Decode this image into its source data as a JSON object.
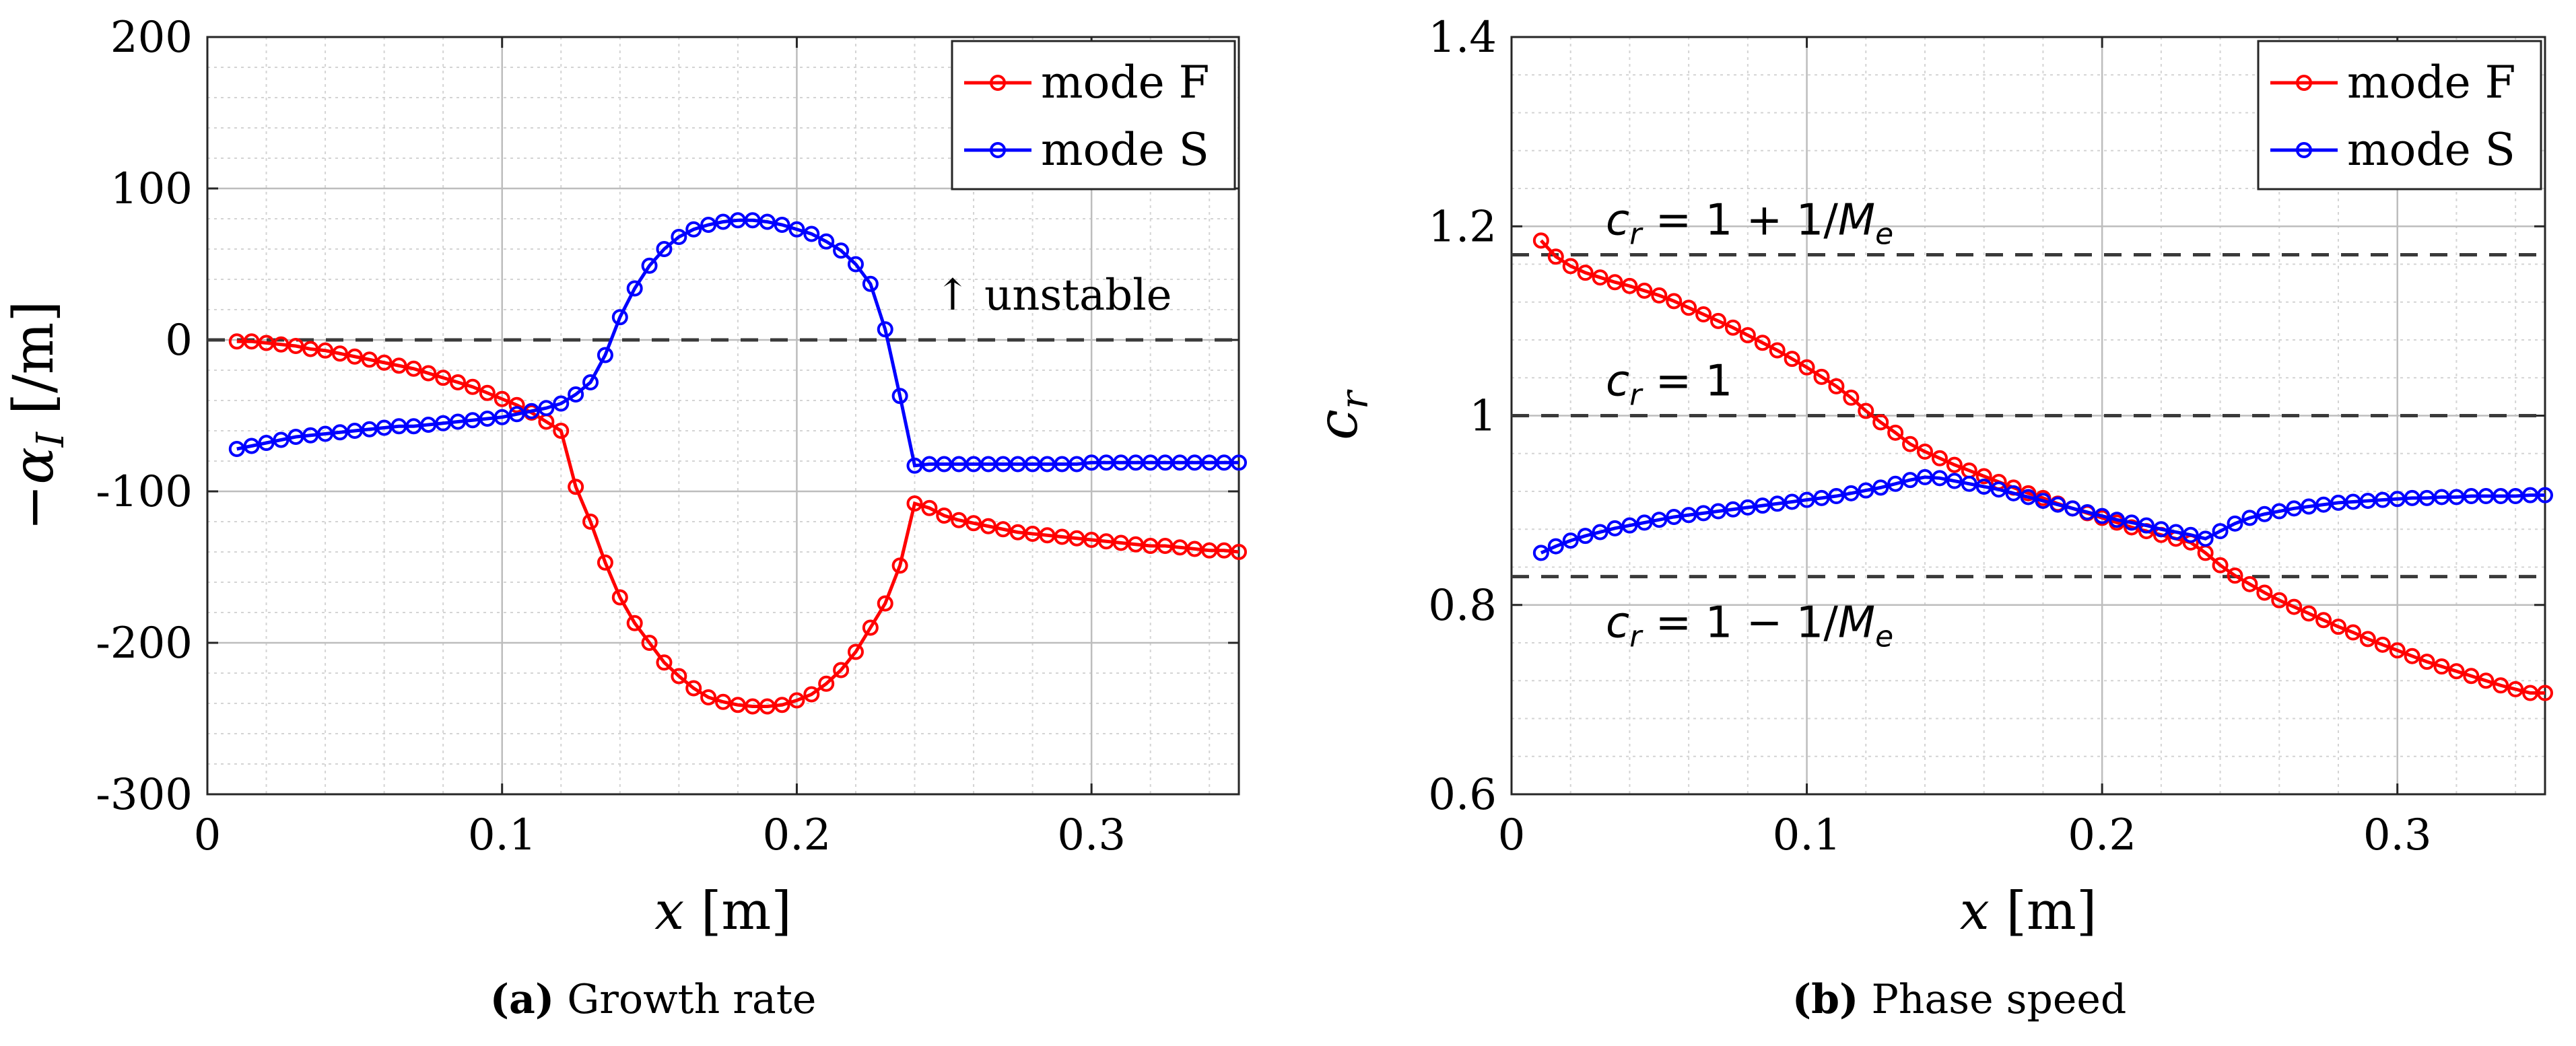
{
  "chart_data": [
    {
      "type": "line",
      "xlabel": "x [m]",
      "ylabel": "−α_I [/m]",
      "xlim": [
        0,
        0.35
      ],
      "ylim": [
        -300,
        200
      ],
      "xticks": [
        0,
        0.1,
        0.2,
        0.3
      ],
      "yticks": [
        -300,
        -200,
        -100,
        0,
        100,
        200
      ],
      "xtick_labels": [
        "0",
        "0.1",
        "0.2",
        "0.3"
      ],
      "ytick_labels": [
        "-300",
        "-200",
        "-100",
        "0",
        "100",
        "200"
      ],
      "grid": "major and minor",
      "legend": "top-right",
      "reference_lines": [
        {
          "y": 0,
          "style": "dashed"
        }
      ],
      "annotations": [
        {
          "text": "↑ unstable",
          "x": 0.287,
          "y": 20
        }
      ],
      "series": [
        {
          "name": "mode F",
          "color": "#ff0000",
          "x": [
            0.01,
            0.015,
            0.02,
            0.025,
            0.03,
            0.035,
            0.04,
            0.045,
            0.05,
            0.055,
            0.06,
            0.065,
            0.07,
            0.075,
            0.08,
            0.085,
            0.09,
            0.095,
            0.1,
            0.105,
            0.11,
            0.115,
            0.12,
            0.125,
            0.13,
            0.135,
            0.14,
            0.145,
            0.15,
            0.155,
            0.16,
            0.165,
            0.17,
            0.175,
            0.18,
            0.185,
            0.19,
            0.195,
            0.2,
            0.205,
            0.21,
            0.215,
            0.22,
            0.225,
            0.23,
            0.235,
            0.24,
            0.245,
            0.25,
            0.255,
            0.26,
            0.265,
            0.27,
            0.275,
            0.28,
            0.285,
            0.29,
            0.295,
            0.3,
            0.305,
            0.31,
            0.315,
            0.32,
            0.325,
            0.33,
            0.335,
            0.34,
            0.345,
            0.35
          ],
          "y": [
            -1,
            -1,
            -2,
            -3,
            -4,
            -6,
            -7,
            -9,
            -11,
            -13,
            -15,
            -17,
            -19,
            -22,
            -25,
            -28,
            -31,
            -35,
            -39,
            -43,
            -48,
            -54,
            -60,
            -97,
            -120,
            -147,
            -170,
            -187,
            -200,
            -213,
            -222,
            -230,
            -236,
            -239,
            -241,
            -242,
            -242,
            -241,
            -238,
            -234,
            -227,
            -218,
            -206,
            -190,
            -174,
            -149,
            -108,
            -111,
            -116,
            -119,
            -121,
            -123,
            -125,
            -127,
            -128,
            -129,
            -130,
            -131,
            -132,
            -133,
            -134,
            -135,
            -136,
            -136,
            -137,
            -138,
            -139,
            -139,
            -140
          ]
        },
        {
          "name": "mode S",
          "color": "#0000ff",
          "x": [
            0.01,
            0.015,
            0.02,
            0.025,
            0.03,
            0.035,
            0.04,
            0.045,
            0.05,
            0.055,
            0.06,
            0.065,
            0.07,
            0.075,
            0.08,
            0.085,
            0.09,
            0.095,
            0.1,
            0.105,
            0.11,
            0.115,
            0.12,
            0.125,
            0.13,
            0.135,
            0.14,
            0.145,
            0.15,
            0.155,
            0.16,
            0.165,
            0.17,
            0.175,
            0.18,
            0.185,
            0.19,
            0.195,
            0.2,
            0.205,
            0.21,
            0.215,
            0.22,
            0.225,
            0.23,
            0.235,
            0.24,
            0.245,
            0.25,
            0.255,
            0.26,
            0.265,
            0.27,
            0.275,
            0.28,
            0.285,
            0.29,
            0.295,
            0.3,
            0.305,
            0.31,
            0.315,
            0.32,
            0.325,
            0.33,
            0.335,
            0.34,
            0.345,
            0.35
          ],
          "y": [
            -72,
            -70,
            -68,
            -66,
            -64,
            -63,
            -62,
            -61,
            -60,
            -59,
            -58,
            -57,
            -57,
            -56,
            -55,
            -54,
            -53,
            -52,
            -51,
            -49,
            -47,
            -45,
            -42,
            -36,
            -28,
            -10,
            15,
            34,
            49,
            60,
            68,
            73,
            76,
            78,
            79,
            79,
            78,
            76,
            73,
            70,
            65,
            59,
            50,
            37,
            7,
            -37,
            -83,
            -82,
            -82,
            -82,
            -82,
            -82,
            -82,
            -82,
            -82,
            -82,
            -82,
            -82,
            -81,
            -81,
            -81,
            -81,
            -81,
            -81,
            -81,
            -81,
            -81,
            -81,
            -81
          ]
        }
      ]
    },
    {
      "type": "line",
      "xlabel": "x [m]",
      "ylabel": "c_r",
      "xlim": [
        0,
        0.35
      ],
      "ylim": [
        0.6,
        1.4
      ],
      "xticks": [
        0,
        0.1,
        0.2,
        0.3
      ],
      "yticks": [
        0.6,
        0.8,
        1.0,
        1.2,
        1.4
      ],
      "xtick_labels": [
        "0",
        "0.1",
        "0.2",
        "0.3"
      ],
      "ytick_labels": [
        "0.6",
        "0.8",
        "1",
        "1.2",
        "1.4"
      ],
      "grid": "major and minor",
      "legend": "top-right",
      "reference_lines": [
        {
          "y": 1.17,
          "style": "dashed",
          "label": "c_r = 1 + 1/M_e"
        },
        {
          "y": 1.0,
          "style": "dashed",
          "label": "c_r = 1"
        },
        {
          "y": 0.83,
          "style": "dashed",
          "label": "c_r = 1 − 1/M_e"
        }
      ],
      "series": [
        {
          "name": "mode F",
          "color": "#ff0000",
          "x": [
            0.01,
            0.015,
            0.02,
            0.025,
            0.03,
            0.035,
            0.04,
            0.045,
            0.05,
            0.055,
            0.06,
            0.065,
            0.07,
            0.075,
            0.08,
            0.085,
            0.09,
            0.095,
            0.1,
            0.105,
            0.11,
            0.115,
            0.12,
            0.125,
            0.13,
            0.135,
            0.14,
            0.145,
            0.15,
            0.155,
            0.16,
            0.165,
            0.17,
            0.175,
            0.18,
            0.185,
            0.19,
            0.195,
            0.2,
            0.205,
            0.21,
            0.215,
            0.22,
            0.225,
            0.23,
            0.235,
            0.24,
            0.245,
            0.25,
            0.255,
            0.26,
            0.265,
            0.27,
            0.275,
            0.28,
            0.285,
            0.29,
            0.295,
            0.3,
            0.305,
            0.31,
            0.315,
            0.32,
            0.325,
            0.33,
            0.335,
            0.34,
            0.345,
            0.35
          ],
          "y": [
            1.185,
            1.168,
            1.158,
            1.151,
            1.146,
            1.141,
            1.137,
            1.132,
            1.127,
            1.121,
            1.114,
            1.107,
            1.1,
            1.093,
            1.085,
            1.077,
            1.069,
            1.06,
            1.051,
            1.041,
            1.031,
            1.019,
            1.005,
            0.993,
            0.982,
            0.97,
            0.962,
            0.955,
            0.948,
            0.942,
            0.936,
            0.93,
            0.924,
            0.918,
            0.913,
            0.907,
            0.902,
            0.897,
            0.892,
            0.887,
            0.882,
            0.878,
            0.874,
            0.87,
            0.866,
            0.855,
            0.842,
            0.831,
            0.822,
            0.813,
            0.805,
            0.798,
            0.791,
            0.784,
            0.777,
            0.771,
            0.764,
            0.758,
            0.752,
            0.746,
            0.74,
            0.735,
            0.73,
            0.725,
            0.72,
            0.715,
            0.711,
            0.707,
            0.707
          ]
        },
        {
          "name": "mode S",
          "color": "#0000ff",
          "x": [
            0.01,
            0.015,
            0.02,
            0.025,
            0.03,
            0.035,
            0.04,
            0.045,
            0.05,
            0.055,
            0.06,
            0.065,
            0.07,
            0.075,
            0.08,
            0.085,
            0.09,
            0.095,
            0.1,
            0.105,
            0.11,
            0.115,
            0.12,
            0.125,
            0.13,
            0.135,
            0.14,
            0.145,
            0.15,
            0.155,
            0.16,
            0.165,
            0.17,
            0.175,
            0.18,
            0.185,
            0.19,
            0.195,
            0.2,
            0.205,
            0.21,
            0.215,
            0.22,
            0.225,
            0.23,
            0.235,
            0.24,
            0.245,
            0.25,
            0.255,
            0.26,
            0.265,
            0.27,
            0.275,
            0.28,
            0.285,
            0.29,
            0.295,
            0.3,
            0.305,
            0.31,
            0.315,
            0.32,
            0.325,
            0.33,
            0.335,
            0.34,
            0.345,
            0.35
          ],
          "y": [
            0.855,
            0.862,
            0.868,
            0.873,
            0.877,
            0.881,
            0.884,
            0.887,
            0.89,
            0.893,
            0.895,
            0.897,
            0.899,
            0.901,
            0.903,
            0.905,
            0.907,
            0.909,
            0.911,
            0.913,
            0.915,
            0.918,
            0.921,
            0.924,
            0.928,
            0.932,
            0.935,
            0.934,
            0.931,
            0.928,
            0.925,
            0.922,
            0.918,
            0.914,
            0.91,
            0.906,
            0.902,
            0.898,
            0.894,
            0.89,
            0.887,
            0.884,
            0.88,
            0.877,
            0.874,
            0.87,
            0.878,
            0.886,
            0.892,
            0.896,
            0.899,
            0.902,
            0.904,
            0.906,
            0.908,
            0.909,
            0.91,
            0.911,
            0.912,
            0.913,
            0.913,
            0.914,
            0.914,
            0.915,
            0.915,
            0.915,
            0.915,
            0.916,
            0.916
          ]
        }
      ]
    }
  ],
  "captions": [
    {
      "label": "(a)",
      "text": "Growth rate"
    },
    {
      "label": "(b)",
      "text": "Phase speed"
    }
  ]
}
